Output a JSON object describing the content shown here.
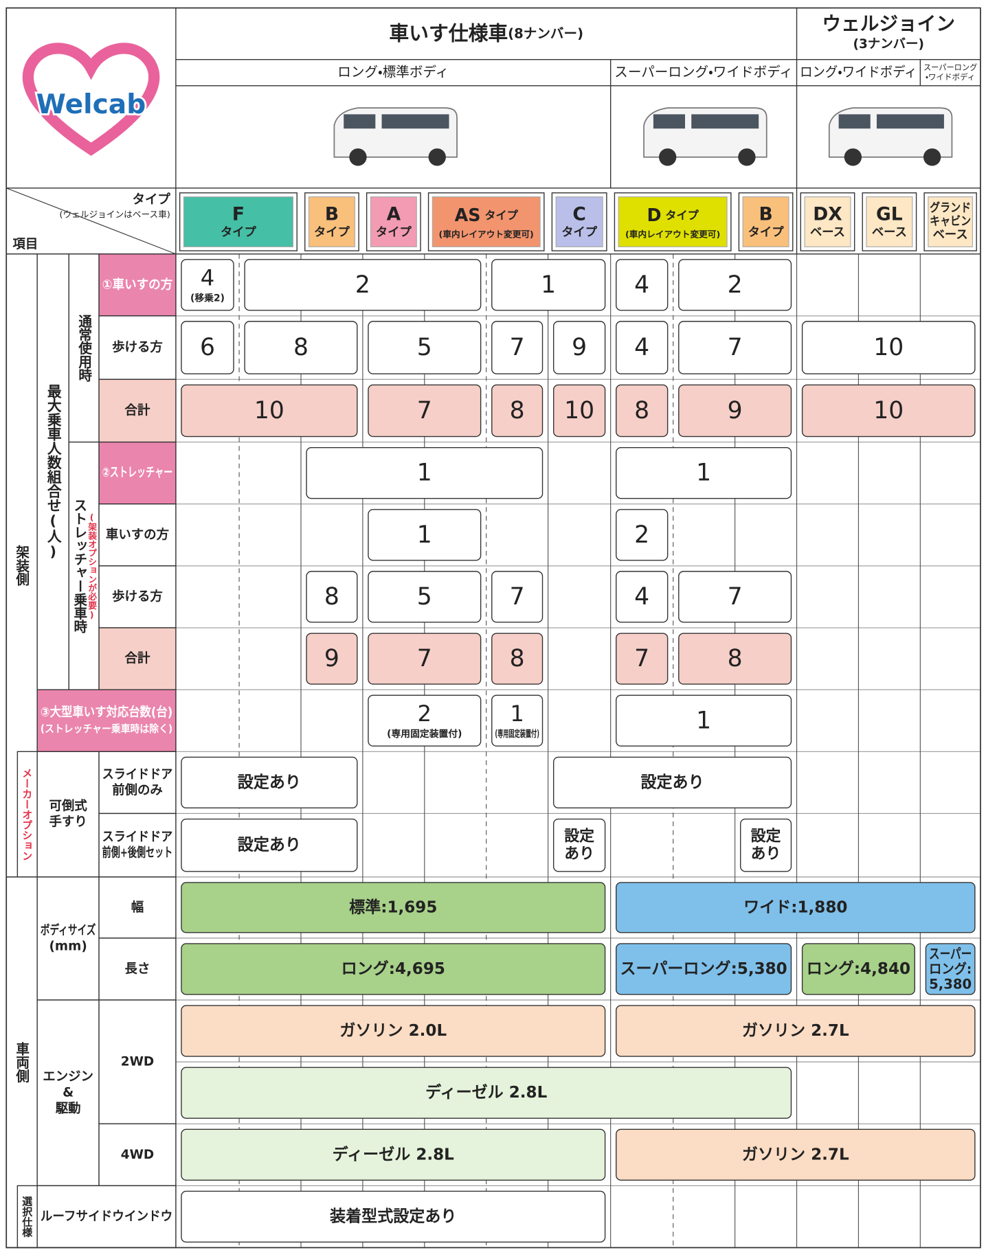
{
  "header": {
    "logo": "Welcab",
    "wheelchair_title": "車いす仕様車",
    "wheelchair_note": "(8ナンバー)",
    "welljoin_title": "ウェルジョイン",
    "welljoin_note": "(3ナンバー)",
    "bodies": [
      [
        "ロング・標準ボディ"
      ],
      [
        "スーパーロング・ワイドボディ"
      ],
      [
        "ロング・ワイドボディ"
      ],
      [
        "スーパーロング",
        "・ワイドボディ"
      ]
    ],
    "type_label": "タイプ",
    "type_note": "(ウェルジョインはベース車)",
    "item_label": "項目"
  },
  "types": [
    {
      "lines": [
        "F",
        "タイプ"
      ],
      "color": "#45bfa5"
    },
    {
      "lines": [
        "B",
        "タイプ"
      ],
      "color": "#f9c07c"
    },
    {
      "lines": [
        "A",
        "タイプ"
      ],
      "color": "#f29bb3"
    },
    {
      "name": "AS",
      "sub": "タイプ",
      "note": "(車内レイアウト変更可)",
      "color": "#f2946e"
    },
    {
      "lines": [
        "C",
        "タイプ"
      ],
      "color": "#b9bfe9"
    },
    {
      "name": "D",
      "sub": "タイプ",
      "note": "(車内レイアウト変更可)",
      "color": "#dfe000"
    },
    {
      "lines": [
        "B",
        "タイプ"
      ],
      "color": "#f9c07c"
    },
    {
      "lines": [
        "DX",
        "ベース"
      ],
      "color": "#fde7c4"
    },
    {
      "lines": [
        "GL",
        "ベース"
      ],
      "color": "#fde7c4"
    },
    {
      "lines": [
        "グランド",
        "キャビン",
        "ベース"
      ],
      "color": "#fde7c4"
    }
  ],
  "vertical_labels": [
    {
      "text": "架装側"
    },
    {
      "text": "メーカーオプション",
      "color": "#e2324a"
    },
    {
      "text": "車両側"
    },
    {
      "text": "選択仕様"
    },
    {
      "text": "最大乗車人数組合せ(人)"
    },
    {
      "text": "通常使用時"
    },
    {
      "text": "ストレッチャー乗車時"
    },
    {
      "text": "(架装オプションが必要)",
      "color": "#e2324a"
    }
  ],
  "label_cells": [
    {
      "text": [
        "①車いすの方"
      ],
      "fill": "#ea85ad",
      "color": "#ffffff"
    },
    {
      "text": [
        "歩ける方"
      ]
    },
    {
      "text": [
        "合計"
      ],
      "fill": "#f6cfc8"
    },
    {
      "text": [
        "②ストレッチャー"
      ],
      "fill": "#ea85ad",
      "color": "#ffffff"
    },
    {
      "text": [
        "車いすの方"
      ]
    },
    {
      "text": [
        "歩ける方"
      ]
    },
    {
      "text": [
        "合計"
      ],
      "fill": "#f6cfc8"
    },
    {
      "text": [
        "③大型車いす対応台数(台)",
        "(ストレッチャー乗車時は除く)"
      ],
      "fill": "#ea85ad",
      "color": "#ffffff"
    },
    {
      "text": [
        "可倒式",
        "手すり"
      ]
    },
    {
      "text": [
        "スライドドア",
        "前側のみ"
      ]
    },
    {
      "text": [
        "スライドドア",
        "前側+後側セット"
      ]
    },
    {
      "text": [
        "ボディサイズ",
        "(mm)"
      ]
    },
    {
      "text": [
        "幅"
      ]
    },
    {
      "text": [
        "長さ"
      ]
    },
    {
      "text": [
        "エンジン",
        "&",
        "駆動"
      ]
    },
    {
      "text": [
        "2WD"
      ]
    },
    {
      "text": [
        "4WD"
      ]
    },
    {
      "text": [
        "ルーフサイドウインドウ"
      ]
    }
  ],
  "rows": [
    [
      {
        "text": 4,
        "note": "(移乗2)"
      },
      {
        "text": 2
      },
      {
        "text": 1
      },
      {
        "text": 4
      },
      {
        "text": 2
      }
    ],
    [
      {
        "text": 6
      },
      {
        "text": 8
      },
      {
        "text": 5
      },
      {
        "text": 7
      },
      {
        "text": 9
      },
      {
        "text": 4
      },
      {
        "text": 7
      },
      {
        "text": 10
      }
    ],
    [
      {
        "text": 10,
        "color": "#f6cfc8"
      },
      {
        "text": 7,
        "color": "#f6cfc8"
      },
      {
        "text": 8,
        "color": "#f6cfc8"
      },
      {
        "text": 10,
        "color": "#f6cfc8"
      },
      {
        "text": 8,
        "color": "#f6cfc8"
      },
      {
        "text": 9,
        "color": "#f6cfc8"
      },
      {
        "text": 10,
        "color": "#f6cfc8"
      }
    ],
    [
      {
        "text": 1
      },
      {
        "text": 1
      }
    ],
    [
      {
        "text": 1
      },
      {
        "text": 2
      }
    ],
    [
      {
        "text": 8
      },
      {
        "text": 5
      },
      {
        "text": 7
      },
      {
        "text": 4
      },
      {
        "text": 7
      }
    ],
    [
      {
        "text": 9,
        "color": "#f6cfc8"
      },
      {
        "text": 7,
        "color": "#f6cfc8"
      },
      {
        "text": 8,
        "color": "#f6cfc8"
      },
      {
        "text": 7,
        "color": "#f6cfc8"
      },
      {
        "text": 8,
        "color": "#f6cfc8"
      }
    ],
    [
      {
        "text": 2,
        "note": "(専用固定装置付)"
      },
      {
        "text": 1,
        "note": "(専用固定装置付)"
      },
      {
        "text": 1
      }
    ],
    [
      {
        "text": "設定あり"
      },
      {
        "text": "設定あり"
      }
    ],
    [
      {
        "text": "設定あり"
      },
      {
        "text": [
          "設定",
          "あり"
        ]
      },
      {
        "text": [
          "設定",
          "あり"
        ]
      }
    ],
    [
      {
        "text": "標準:1,695",
        "color": "#a8d18a"
      },
      {
        "text": "ワイド:1,880",
        "color": "#7fc0ea"
      }
    ],
    [
      {
        "text": "ロング:4,695",
        "color": "#a8d18a"
      },
      {
        "text": "スーパーロング:5,380",
        "color": "#7fc0ea"
      },
      {
        "text": "ロング:4,840",
        "color": "#a8d18a"
      },
      {
        "text": [
          "スーパー",
          "ロング:",
          "5,380"
        ],
        "color": "#7fc0ea"
      }
    ],
    [
      {
        "text": "ガソリン 2.0L",
        "color": "#fbdcc4"
      },
      {
        "text": "ガソリン 2.7L",
        "color": "#fbdcc4"
      }
    ],
    [
      {
        "text": "ディーゼル 2.8L",
        "color": "#e6f3dc"
      }
    ],
    [
      {
        "text": "ディーゼル 2.8L",
        "color": "#e6f3dc"
      },
      {
        "text": "ガソリン 2.7L",
        "color": "#fbdcc4"
      }
    ],
    [
      {
        "text": "装着型式設定あり"
      }
    ]
  ]
}
